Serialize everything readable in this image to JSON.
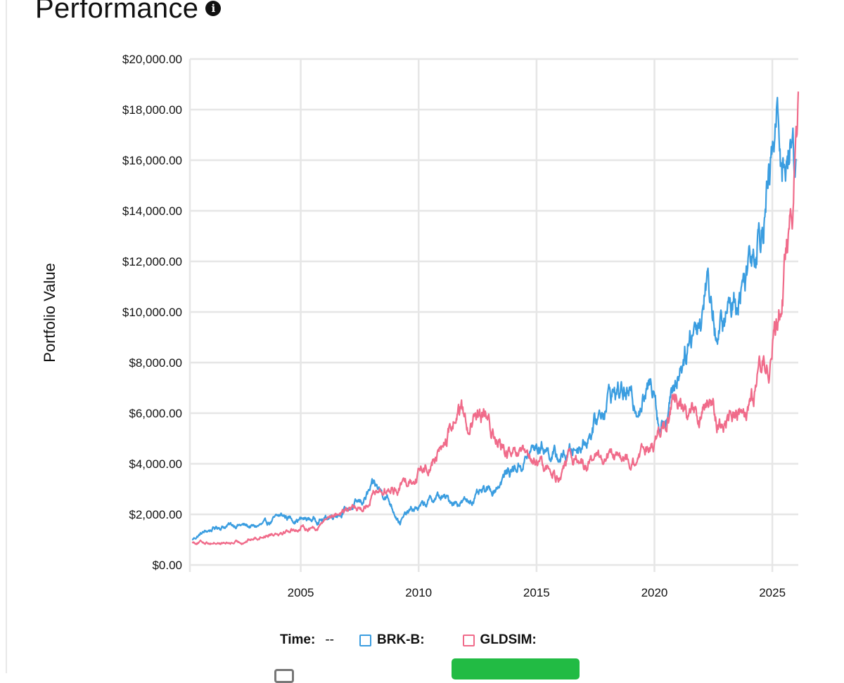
{
  "header": {
    "title": "Performance",
    "info_icon": "info-icon"
  },
  "legend": {
    "time_label": "Time:",
    "time_value": "--",
    "series": [
      {
        "label": "BRK-B:",
        "color": "#3a9de0"
      },
      {
        "label": "GLDSIM:",
        "color": "#f06b8a"
      }
    ]
  },
  "chart_data": {
    "type": "line",
    "title": "",
    "xlabel": "",
    "ylabel": "Portfolio Value",
    "xlim": [
      2000.3,
      2026.1
    ],
    "ylim": [
      0,
      20000
    ],
    "x_ticks": [
      2005,
      2010,
      2015,
      2020,
      2025
    ],
    "x_tick_labels": [
      "2005",
      "2010",
      "2015",
      "2020",
      "2025"
    ],
    "y_ticks": [
      0,
      2000,
      4000,
      6000,
      8000,
      10000,
      12000,
      14000,
      16000,
      18000,
      20000
    ],
    "y_tick_labels": [
      "$0.00",
      "$2,000.00",
      "$4,000.00",
      "$6,000.00",
      "$8,000.00",
      "$10,000.00",
      "$12,000.00",
      "$14,000.00",
      "$16,000.00",
      "$18,000.00",
      "$20,000.00"
    ],
    "grid": true,
    "series": [
      {
        "name": "BRK-B",
        "color": "#3a9de0",
        "points": [
          [
            2000.4,
            1000
          ],
          [
            2000.8,
            1250
          ],
          [
            2001.5,
            1500
          ],
          [
            2002.3,
            1600
          ],
          [
            2003.0,
            1500
          ],
          [
            2003.5,
            1600
          ],
          [
            2004.2,
            1950
          ],
          [
            2004.8,
            1800
          ],
          [
            2005.5,
            1800
          ],
          [
            2006.0,
            1800
          ],
          [
            2006.5,
            2050
          ],
          [
            2007.0,
            2200
          ],
          [
            2007.6,
            2500
          ],
          [
            2008.1,
            3100
          ],
          [
            2008.6,
            2800
          ],
          [
            2009.0,
            2100
          ],
          [
            2009.2,
            1700
          ],
          [
            2009.6,
            2100
          ],
          [
            2010.2,
            2350
          ],
          [
            2010.8,
            2700
          ],
          [
            2011.5,
            2500
          ],
          [
            2012.0,
            2500
          ],
          [
            2012.7,
            2800
          ],
          [
            2013.2,
            3000
          ],
          [
            2013.8,
            3700
          ],
          [
            2014.4,
            4000
          ],
          [
            2014.9,
            4600
          ],
          [
            2015.3,
            4700
          ],
          [
            2015.9,
            4200
          ],
          [
            2016.5,
            4500
          ],
          [
            2017.1,
            5000
          ],
          [
            2017.6,
            5800
          ],
          [
            2018.1,
            6800
          ],
          [
            2018.7,
            6900
          ],
          [
            2019.1,
            6400
          ],
          [
            2019.6,
            6600
          ],
          [
            2020.0,
            7400
          ],
          [
            2020.2,
            5500
          ],
          [
            2020.6,
            6200
          ],
          [
            2021.1,
            8000
          ],
          [
            2021.6,
            9400
          ],
          [
            2022.0,
            9900
          ],
          [
            2022.2,
            11500
          ],
          [
            2022.7,
            9000
          ],
          [
            2023.2,
            10200
          ],
          [
            2023.7,
            11000
          ],
          [
            2024.1,
            12600
          ],
          [
            2024.5,
            13600
          ],
          [
            2024.9,
            15300
          ],
          [
            2025.2,
            17500
          ],
          [
            2025.5,
            16000
          ],
          [
            2025.8,
            16500
          ],
          [
            2026.0,
            16200
          ]
        ]
      },
      {
        "name": "GLDSIM",
        "color": "#f06b8a",
        "points": [
          [
            2000.4,
            900
          ],
          [
            2001.0,
            900
          ],
          [
            2001.8,
            850
          ],
          [
            2002.5,
            900
          ],
          [
            2003.2,
            1100
          ],
          [
            2004.0,
            1300
          ],
          [
            2005.0,
            1450
          ],
          [
            2005.7,
            1500
          ],
          [
            2006.3,
            2000
          ],
          [
            2007.0,
            2150
          ],
          [
            2007.7,
            2300
          ],
          [
            2008.2,
            3000
          ],
          [
            2008.8,
            2900
          ],
          [
            2009.3,
            3200
          ],
          [
            2009.9,
            3600
          ],
          [
            2010.6,
            4100
          ],
          [
            2011.1,
            4800
          ],
          [
            2011.7,
            6200
          ],
          [
            2012.2,
            5500
          ],
          [
            2012.8,
            5800
          ],
          [
            2013.3,
            4900
          ],
          [
            2013.8,
            4300
          ],
          [
            2014.4,
            4200
          ],
          [
            2015.1,
            4000
          ],
          [
            2015.9,
            3500
          ],
          [
            2016.5,
            4200
          ],
          [
            2017.2,
            4000
          ],
          [
            2017.9,
            4300
          ],
          [
            2018.6,
            4100
          ],
          [
            2019.2,
            4000
          ],
          [
            2019.8,
            4700
          ],
          [
            2020.5,
            5500
          ],
          [
            2020.8,
            6600
          ],
          [
            2021.3,
            6200
          ],
          [
            2021.9,
            5800
          ],
          [
            2022.3,
            6300
          ],
          [
            2022.7,
            5700
          ],
          [
            2023.1,
            5600
          ],
          [
            2023.6,
            6300
          ],
          [
            2024.1,
            6500
          ],
          [
            2024.5,
            7700
          ],
          [
            2024.9,
            8500
          ],
          [
            2025.2,
            9200
          ],
          [
            2025.5,
            11400
          ],
          [
            2025.8,
            14000
          ],
          [
            2026.0,
            16000
          ],
          [
            2026.1,
            18000
          ]
        ]
      }
    ]
  }
}
